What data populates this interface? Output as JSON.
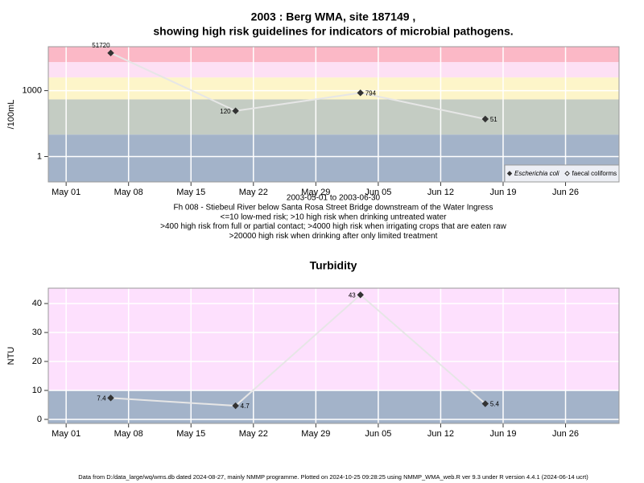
{
  "footer": "Data from D:/data_large/wq/wms.db dated 2024-08-27, mainly NMMP programme. Plotted on 2024-10-25 09:28:25 using NMMP_WMA_web.R ver 9.3 under R version 4.4.1 (2024-06-14 ucrt)",
  "chart_data": [
    {
      "type": "line",
      "title": [
        "2003 : Berg WMA, site 187149 ,",
        "showing high risk guidelines for indicators of microbial pathogens."
      ],
      "ylabel": "/100mL",
      "xlabel": "2003-05-01 to 2003-06-30",
      "notes": [
        "Fh 008 - Stiebeul River below Santa Rosa Street Bridge downstream of the Water Ingress",
        "<=10 low-med risk; >10 high risk when drinking untreated water",
        ">400 high risk from full or partial contact; >4000 high risk when irrigating crops that are eaten raw",
        ">20000 high risk when drinking after only limited treatment"
      ],
      "x": [
        "May 06",
        "May 20",
        "Jun 03",
        "Jun 17"
      ],
      "series": [
        {
          "name": "Escherichia coli",
          "color": "#333333",
          "open": false,
          "values": [
            51720,
            120,
            794,
            51
          ]
        },
        {
          "name": "faecal coliforms",
          "color": "#333333",
          "open": true,
          "values": [
            null,
            null,
            null,
            null
          ]
        }
      ],
      "line_color": "#e6e6e6",
      "xlim": [
        "Apr 29",
        "Jul 02"
      ],
      "xticks": [
        "May 01",
        "May 08",
        "May 15",
        "May 22",
        "May 29",
        "Jun 05",
        "Jun 12",
        "Jun 19",
        "Jun 26"
      ],
      "ylim": [
        0.07,
        100000
      ],
      "yticks": [
        1,
        1000
      ],
      "log_scale": true,
      "grid": true,
      "band_breaks": [
        10,
        400,
        4000,
        20000
      ],
      "band_colors": [
        "#a3b3c9",
        "#c4ccc3",
        "#fdf5c9",
        "#fde0f4",
        "#fbb8c6"
      ],
      "legend": "bottom right"
    },
    {
      "type": "line",
      "title": [
        "Turbidity"
      ],
      "ylabel": "NTU",
      "x": [
        "May 06",
        "May 20",
        "Jun 03",
        "Jun 17"
      ],
      "series": [
        {
          "color": "#333333",
          "open": false,
          "values": [
            7.4,
            4.7,
            43,
            5.4
          ]
        }
      ],
      "line_color": "#e6e6e6",
      "xlim": [
        "Apr 29",
        "Jul 02"
      ],
      "xticks": [
        "May 01",
        "May 08",
        "May 15",
        "May 22",
        "May 29",
        "Jun 05",
        "Jun 12",
        "Jun 19",
        "Jun 26"
      ],
      "ylim": [
        -1.4,
        45.3
      ],
      "yticks": [
        0,
        10,
        20,
        30,
        40
      ],
      "log_scale": false,
      "grid": true,
      "band_breaks": [
        10
      ],
      "band_colors": [
        "#a3b3c9",
        "#fde0fd"
      ]
    }
  ]
}
